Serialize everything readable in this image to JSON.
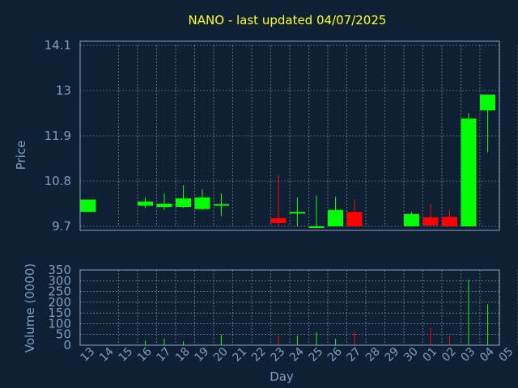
{
  "chart_data": {
    "type": "candlestick",
    "title": "NANO - last updated 04/07/2025",
    "xlabel": "Day",
    "categories": [
      "13",
      "14",
      "15",
      "16",
      "17",
      "18",
      "19",
      "20",
      "21",
      "22",
      "23",
      "24",
      "25",
      "26",
      "27",
      "28",
      "29",
      "30",
      "01",
      "02",
      "03",
      "04",
      "05"
    ],
    "price_panel": {
      "ylabel": "Price",
      "ylim": [
        9.7,
        14.1
      ],
      "yticks": [
        "14.1",
        "13",
        "11.9",
        "10.8",
        "9.7"
      ],
      "grid": true,
      "up_color": "#00ff00",
      "down_color": "#ff0000",
      "candles": [
        {
          "day": "13",
          "open": 10.05,
          "high": 10.35,
          "low": 10.05,
          "close": 10.35
        },
        {
          "day": "16",
          "open": 10.2,
          "high": 10.4,
          "low": 10.15,
          "close": 10.3
        },
        {
          "day": "17",
          "open": 10.17,
          "high": 10.5,
          "low": 10.1,
          "close": 10.25
        },
        {
          "day": "18",
          "open": 10.17,
          "high": 10.7,
          "low": 10.15,
          "close": 10.38
        },
        {
          "day": "19",
          "open": 10.12,
          "high": 10.6,
          "low": 10.1,
          "close": 10.4
        },
        {
          "day": "20",
          "open": 10.2,
          "high": 10.5,
          "low": 9.95,
          "close": 10.24
        },
        {
          "day": "23",
          "open": 9.9,
          "high": 10.95,
          "low": 9.55,
          "close": 9.78
        },
        {
          "day": "24",
          "open": 10.02,
          "high": 10.4,
          "low": 9.55,
          "close": 10.05
        },
        {
          "day": "25",
          "open": 9.55,
          "high": 10.45,
          "low": 9.55,
          "close": 9.67
        },
        {
          "day": "26",
          "open": 9.57,
          "high": 10.42,
          "low": 9.57,
          "close": 10.1
        },
        {
          "day": "27",
          "open": 10.05,
          "high": 10.35,
          "low": 9.68,
          "close": 9.68
        },
        {
          "day": "30",
          "open": 9.7,
          "high": 10.05,
          "low": 9.7,
          "close": 10.0
        },
        {
          "day": "01",
          "open": 9.92,
          "high": 10.25,
          "low": 9.72,
          "close": 9.72
        },
        {
          "day": "02",
          "open": 9.93,
          "high": 10.1,
          "low": 9.57,
          "close": 9.57
        },
        {
          "day": "03",
          "open": 9.62,
          "high": 12.45,
          "low": 9.62,
          "close": 12.32
        },
        {
          "day": "04",
          "open": 12.52,
          "high": 12.9,
          "low": 11.5,
          "close": 12.9
        }
      ]
    },
    "volume_panel": {
      "ylabel": "Volume (0000)",
      "ylim": [
        0,
        350
      ],
      "yticks": [
        "350",
        "300",
        "250",
        "200",
        "150",
        "100",
        "50",
        "0"
      ],
      "grid": true,
      "bars": [
        {
          "day": "16",
          "value": 22,
          "color": "#00ff00"
        },
        {
          "day": "17",
          "value": 30,
          "color": "#00ff00"
        },
        {
          "day": "18",
          "value": 18,
          "color": "#00ff00"
        },
        {
          "day": "20",
          "value": 48,
          "color": "#00ff00"
        },
        {
          "day": "23",
          "value": 45,
          "color": "#ff0000"
        },
        {
          "day": "24",
          "value": 44,
          "color": "#00ff00"
        },
        {
          "day": "25",
          "value": 60,
          "color": "#00ff00"
        },
        {
          "day": "26",
          "value": 30,
          "color": "#00ff00"
        },
        {
          "day": "27",
          "value": 65,
          "color": "#ff0000"
        },
        {
          "day": "01",
          "value": 80,
          "color": "#ff0000"
        },
        {
          "day": "02",
          "value": 42,
          "color": "#ff0000"
        },
        {
          "day": "03",
          "value": 305,
          "color": "#00ff00"
        },
        {
          "day": "04",
          "value": 190,
          "color": "#00ff00"
        }
      ]
    }
  }
}
